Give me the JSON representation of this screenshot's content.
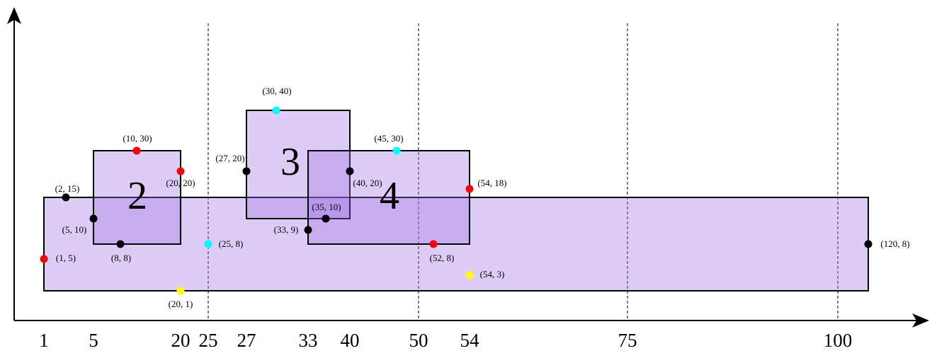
{
  "axis_labels": [
    "1",
    "5",
    "20",
    "25",
    "27",
    "33",
    "40",
    "50",
    "54",
    "75",
    "100"
  ],
  "rectangles": [
    {
      "label": "2"
    },
    {
      "label": "3"
    },
    {
      "label": "4"
    }
  ],
  "points": [
    {
      "label": "(2, 15)",
      "color": "black"
    },
    {
      "label": "(1, 5)",
      "color": "red"
    },
    {
      "label": "(5, 10)",
      "color": "black"
    },
    {
      "label": "(8, 8)",
      "color": "black"
    },
    {
      "label": "(10, 30)",
      "color": "red"
    },
    {
      "label": "(20, 20)",
      "color": "red"
    },
    {
      "label": "(20, 1)",
      "color": "yellow"
    },
    {
      "label": "(25, 8)",
      "color": "cyan"
    },
    {
      "label": "(27, 20)",
      "color": "black"
    },
    {
      "label": "(30, 40)",
      "color": "cyan"
    },
    {
      "label": "(35, 10)",
      "color": "black"
    },
    {
      "label": "(33, 9)",
      "color": "black"
    },
    {
      "label": "(40, 20)",
      "color": "black"
    },
    {
      "label": "(45, 30)",
      "color": "cyan"
    },
    {
      "label": "(54, 18)",
      "color": "red"
    },
    {
      "label": "(52, 8)",
      "color": "red"
    },
    {
      "label": "(54, 3)",
      "color": "yellow"
    },
    {
      "label": "(120, 8)",
      "color": "black"
    }
  ]
}
